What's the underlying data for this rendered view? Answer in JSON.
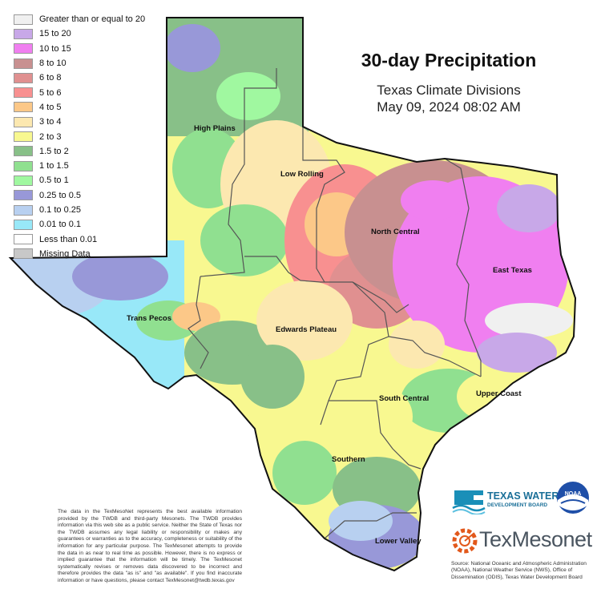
{
  "title": "30-day Precipitation",
  "subtitle": "Texas Climate Divisions",
  "timestamp": "May 09, 2024 08:02 AM",
  "legend": [
    {
      "label": "Greater than or equal to 20",
      "color": "#f0f0f0"
    },
    {
      "label": "15 to 20",
      "color": "#c8a8e8"
    },
    {
      "label": "10 to 15",
      "color": "#f07ff0"
    },
    {
      "label": "8 to 10",
      "color": "#c89090"
    },
    {
      "label": "6 to 8",
      "color": "#e09090"
    },
    {
      "label": "5 to 6",
      "color": "#f89090"
    },
    {
      "label": "4 to 5",
      "color": "#fcc888"
    },
    {
      "label": "3 to 4",
      "color": "#fce8b0"
    },
    {
      "label": "2 to 3",
      "color": "#f8f890"
    },
    {
      "label": "1.5 to 2",
      "color": "#88c088"
    },
    {
      "label": "1 to 1.5",
      "color": "#90e090"
    },
    {
      "label": "0.5 to 1",
      "color": "#a0f8a0"
    },
    {
      "label": "0.25 to 0.5",
      "color": "#9898d8"
    },
    {
      "label": "0.1 to 0.25",
      "color": "#b8d0f0"
    },
    {
      "label": "0.01 to 0.1",
      "color": "#98e8f8"
    },
    {
      "label": "Less than 0.01",
      "color": "#ffffff"
    },
    {
      "label": "Missing Data",
      "color": "#c8c8c8"
    }
  ],
  "divisions": {
    "high_plains": "High Plains",
    "low_rolling": "Low Rolling",
    "north_central": "North Central",
    "east_texas": "East Texas",
    "trans_pecos": "Trans Pecos",
    "edwards_plateau": "Edwards Plateau",
    "south_central": "South Central",
    "upper_coast": "Upper Coast",
    "southern": "Southern",
    "lower_valley": "Lower Valley"
  },
  "disclaimer": "The data in the TexMesoNet represents the best available information provided by the TWDB and third-party Mesonets. The TWDB provides information via this web site as a public service. Neither the State of Texas nor the TWDB assumes any legal liability or responsibility or makes any guarantees or warranties as to the accuracy, completeness or suitability of the information for any particular purpose. The TexMesonet attempts to provide the data in as near to real time as possible. However, there is no express or implied guarantee that the information will be timely. The TexMesonet systematically revises or removes data discovered to be incorrect and therefore provides the data \"as is\" and \"as available\". If you find inaccurate information or have questions, please contact TexMesonet@twdb.texas.gov",
  "source": "Source: National Oceanic and Atmospheric Administration (NOAA), National Weather Service (NWS), Office of Dissemination (ODIS), Texas Water Development Board",
  "logos": {
    "twdb_line1": "TEXAS WATER",
    "twdb_line2": "DEVELOPMENT BOARD",
    "noaa": "NOAA",
    "texmesonet": "TexMesonet"
  }
}
